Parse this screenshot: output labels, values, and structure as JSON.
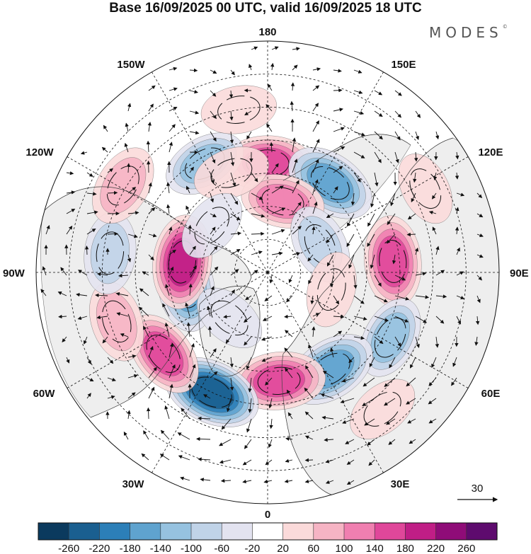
{
  "title": "Base 16/09/2025 00 UTC, valid 16/09/2025 18 UTC",
  "brand": "MODES",
  "brand_mark": "©",
  "longitude_labels": {
    "top": "180",
    "bottom": "0",
    "left": "90W",
    "right": "90E",
    "upper_left_1": "150W",
    "upper_left_2": "120W",
    "upper_right_1": "150E",
    "upper_right_2": "120E",
    "lower_left_1": "60W",
    "lower_left_2": "30W",
    "lower_right_1": "60E",
    "lower_right_2": "30E"
  },
  "reference_vector": {
    "label": "30"
  },
  "colorbar": {
    "ticks": [
      "-260",
      "-220",
      "-180",
      "-140",
      "-100",
      "-60",
      "-20",
      "20",
      "60",
      "100",
      "140",
      "180",
      "220",
      "260"
    ],
    "colors": [
      "#0b3a5e",
      "#1a5f90",
      "#2c7fb8",
      "#5fa3cf",
      "#96c2e0",
      "#c0d3e8",
      "#e3e3f0",
      "#ffffff",
      "#fbdada",
      "#f6b4c4",
      "#f07fb0",
      "#e0479a",
      "#c01e86",
      "#8f0c78",
      "#5e0b6e"
    ]
  },
  "anomalies": [
    {
      "lon": 180,
      "lat": 57,
      "value": 150
    },
    {
      "lon": 145,
      "lat": 57,
      "value": -180
    },
    {
      "lon": 168,
      "lat": 68,
      "value": 110
    },
    {
      "lon": 95,
      "lat": 52,
      "value": 170
    },
    {
      "lon": 118,
      "lat": 72,
      "value": -90
    },
    {
      "lon": 62,
      "lat": 48,
      "value": -110
    },
    {
      "lon": 33,
      "lat": 55,
      "value": -180
    },
    {
      "lon": 6,
      "lat": 57,
      "value": 180
    },
    {
      "lon": -25,
      "lat": 50,
      "value": -240
    },
    {
      "lon": -52,
      "lat": 50,
      "value": 150
    },
    {
      "lon": -72,
      "lat": 42,
      "value": 90
    },
    {
      "lon": -80,
      "lat": 65,
      "value": -160
    },
    {
      "lon": -97,
      "lat": 64,
      "value": 190
    },
    {
      "lon": -97,
      "lat": 42,
      "value": -100
    },
    {
      "lon": -121,
      "lat": 39,
      "value": 100
    },
    {
      "lon": -150,
      "lat": 52,
      "value": -110
    },
    {
      "lon": -160,
      "lat": 58,
      "value": 60
    },
    {
      "lon": -170,
      "lat": 40,
      "value": 50
    },
    {
      "lon": 118,
      "lat": 36,
      "value": 40
    },
    {
      "lon": 75,
      "lat": 70,
      "value": 50
    },
    {
      "lon": 40,
      "lat": 36,
      "value": 40
    },
    {
      "lon": -40,
      "lat": 72,
      "value": -40
    },
    {
      "lon": -130,
      "lat": 68,
      "value": -40
    }
  ]
}
